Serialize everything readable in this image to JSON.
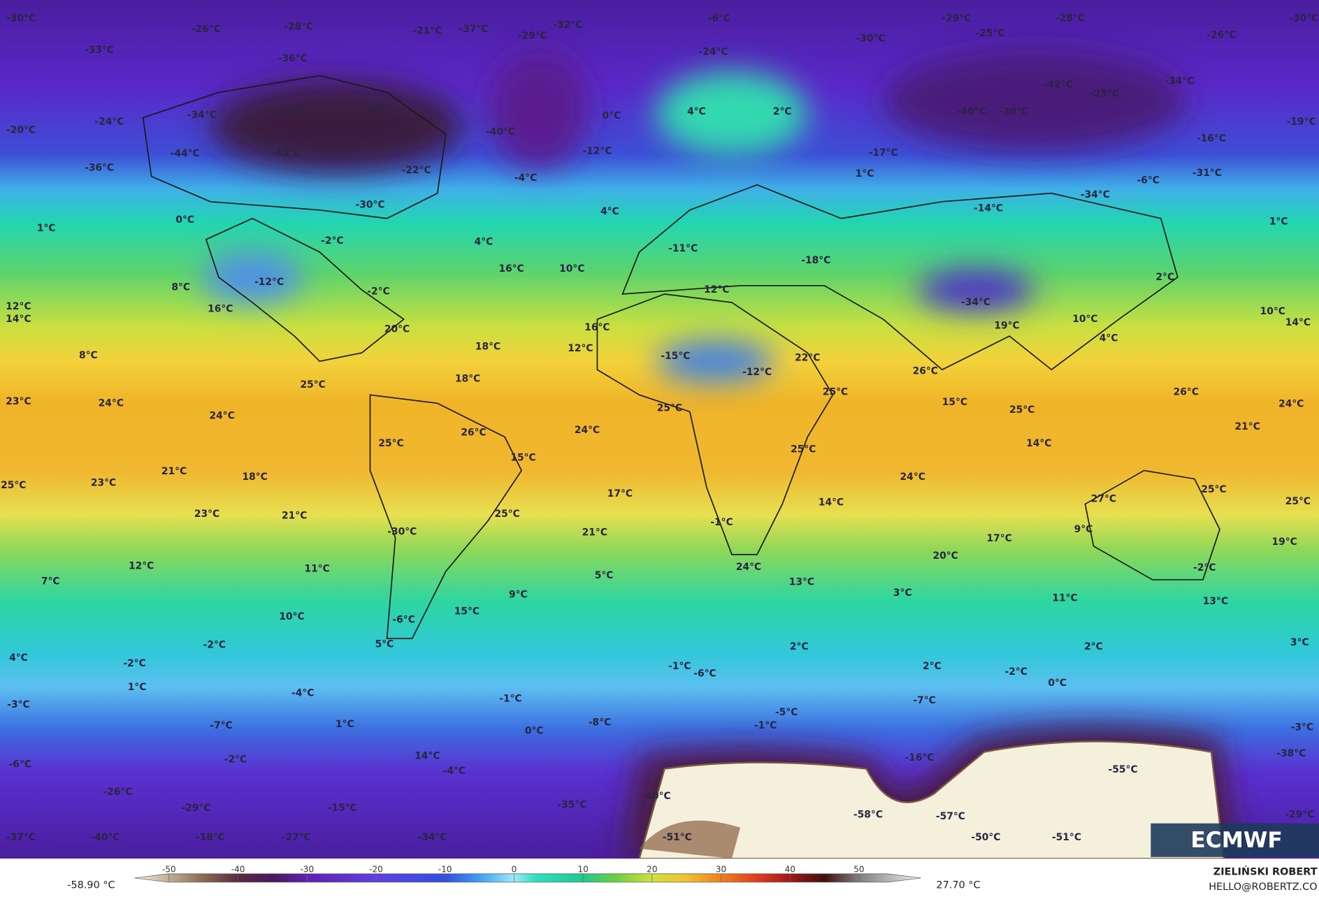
{
  "map": {
    "labels": [
      "-30°C",
      "-26°C",
      "-28°C",
      "-21°C",
      "-37°C",
      "-29°C",
      "-32°C",
      "-6°C",
      "-29°C",
      "-28°C",
      "-30°C",
      "-33°C",
      "-36°C",
      "-24°C",
      "-30°C",
      "-25°C",
      "-26°C",
      "0°C",
      "4°C",
      "2°C",
      "-45°C",
      "-31°C",
      "-34°C",
      "-42°C",
      "-25°C",
      "-34°C",
      "-40°C",
      "-30°C",
      "-24°C",
      "-40°C",
      "-19°C",
      "-20°C",
      "-44°C",
      "-45°C",
      "-12°C",
      "-17°C",
      "-16°C",
      "-36°C",
      "-22°C",
      "-4°C",
      "1°C",
      "-6°C",
      "-31°C",
      "-30°C",
      "4°C",
      "-14°C",
      "-34°C",
      "1°C",
      "0°C",
      "4°C",
      "-2°C",
      "1°C",
      "16°C",
      "10°C",
      "-11°C",
      "8°C",
      "-12°C",
      "-2°C",
      "12°C",
      "-18°C",
      "2°C",
      "12°C",
      "14°C",
      "16°C",
      "-34°C",
      "10°C",
      "10°C",
      "14°C",
      "20°C",
      "16°C",
      "12°C",
      "18°C",
      "19°C",
      "4°C",
      "8°C",
      "-15°C",
      "-12°C",
      "22°C",
      "26°C",
      "18°C",
      "25°C",
      "23°C",
      "24°C",
      "24°C",
      "25°C",
      "15°C",
      "26°C",
      "24°C",
      "25°C",
      "24°C",
      "26°C",
      "25°C",
      "21°C",
      "25°C",
      "14°C",
      "15°C",
      "25°C",
      "21°C",
      "18°C",
      "24°C",
      "23°C",
      "25°C",
      "17°C",
      "25°C",
      "14°C",
      "27°C",
      "25°C",
      "23°C",
      "21°C",
      "25°C",
      "-30°C",
      "-1°C",
      "9°C",
      "21°C",
      "17°C",
      "19°C",
      "20°C",
      "12°C",
      "24°C",
      "-2°C",
      "11°C",
      "7°C",
      "5°C",
      "13°C",
      "3°C",
      "9°C",
      "11°C",
      "13°C",
      "15°C",
      "10°C",
      "-6°C",
      "5°C",
      "-2°C",
      "2°C",
      "2°C",
      "3°C",
      "4°C",
      "-2°C",
      "-1°C",
      "-6°C",
      "2°C",
      "-2°C",
      "0°C",
      "1°C",
      "-4°C",
      "-1°C",
      "-7°C",
      "-3°C",
      "-5°C",
      "1°C",
      "-7°C",
      "-8°C",
      "-1°C",
      "0°C",
      "-3°C",
      "-16°C",
      "14°C",
      "-38°C",
      "-2°C",
      "-6°C",
      "-4°C",
      "-55°C",
      "-26°C",
      "-40°C",
      "-29°C",
      "-15°C",
      "-35°C",
      "-58°C",
      "-57°C",
      "-29°C",
      "-37°C",
      "-40°C",
      "-18°C",
      "-27°C",
      "-34°C",
      "-51°C",
      "-50°C",
      "-51°C"
    ]
  },
  "colorbar": {
    "ticks": [
      -50,
      -40,
      -30,
      -20,
      -10,
      0,
      10,
      20,
      30,
      40,
      50
    ],
    "lim": [
      -55,
      59
    ],
    "min_label": "-58.90 °C",
    "max_label": "27.70 °C"
  },
  "credits": {
    "author": "ZIELIŃSKI ROBERT",
    "email": "HELLO@ROBERTZ.CO"
  },
  "logo": "ECMWF"
}
